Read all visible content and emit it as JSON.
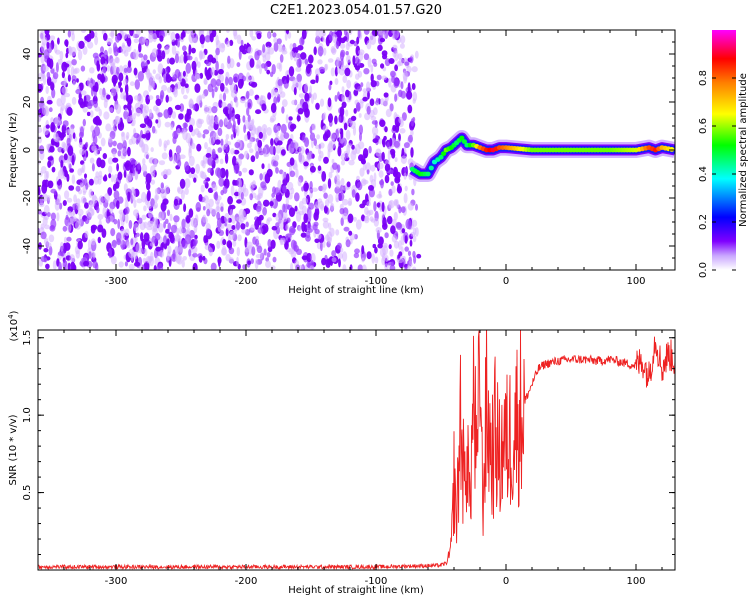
{
  "title": "C2E1.2023.054.01.57.G20",
  "chart_data": [
    {
      "type": "heatmap",
      "xlabel": "Height of straight line (km)",
      "ylabel": "Frequency (Hz)",
      "xlim": [
        -360,
        130
      ],
      "ylim": [
        -50,
        50
      ],
      "xticks": [
        -300,
        -200,
        -100,
        0,
        100
      ],
      "yticks": [
        -40,
        -20,
        0,
        20,
        40
      ],
      "colorbar": {
        "label": "Normalized spectral amplitude",
        "range": [
          0.0,
          1.0
        ],
        "ticks": [
          0.0,
          0.2,
          0.4,
          0.6,
          0.8
        ],
        "tick_labels": [
          "0.0",
          "0.2",
          "0.4",
          "0.6",
          "0.8"
        ],
        "colormap": [
          "#ffffff",
          "#7f00ff",
          "#0000ff",
          "#00ffff",
          "#00ff00",
          "#ffff00",
          "#ff7f00",
          "#ff0000",
          "#ff00ff"
        ]
      },
      "noise_region": {
        "x_range": [
          -360,
          -70
        ],
        "dominant_color": "#7f00ff"
      },
      "signal_track": {
        "x": [
          -72,
          -66,
          -60,
          -55,
          -50,
          -46,
          -42,
          -38,
          -34,
          -30,
          -25,
          -20,
          -15,
          -10,
          -5,
          0,
          20,
          50,
          80,
          100,
          110,
          115,
          120,
          130
        ],
        "y": [
          -8,
          -10,
          -10,
          -5,
          -3,
          0,
          1,
          3,
          5,
          2,
          2,
          1,
          0,
          0,
          1,
          1,
          0,
          0,
          0,
          0,
          1,
          0,
          1,
          0
        ],
        "amplitude": [
          0.45,
          0.5,
          0.45,
          0.4,
          0.45,
          0.55,
          0.5,
          0.45,
          0.5,
          0.45,
          0.55,
          0.75,
          0.85,
          0.9,
          0.8,
          0.75,
          0.55,
          0.55,
          0.55,
          0.6,
          0.8,
          0.85,
          0.7,
          0.6
        ]
      }
    },
    {
      "type": "line",
      "xlabel": "Height of straight line (km)",
      "ylabel": "SNR (10 * v/v)",
      "ylabel_scale": "(x10",
      "ylabel_scale_exp": "4",
      "ylabel_scale_close": ")",
      "xlim": [
        -360,
        130
      ],
      "ylim": [
        0.0,
        1.55
      ],
      "xticks": [
        -300,
        -200,
        -100,
        0,
        100
      ],
      "yticks": [
        0.5,
        1.0,
        1.5
      ],
      "ytick_labels": [
        "0.5",
        "1.0",
        "1.5"
      ],
      "series": [
        {
          "color": "#ee2222",
          "x": [
            -360,
            -300,
            -200,
            -100,
            -50,
            -45,
            -42,
            -40,
            -38,
            -35,
            -32,
            -30,
            -28,
            -25,
            -22,
            -20,
            -18,
            -15,
            -12,
            -10,
            -8,
            -5,
            -2,
            0,
            5,
            10,
            15,
            20,
            25,
            30,
            40,
            50,
            60,
            70,
            80,
            90,
            100,
            105,
            110,
            115,
            120,
            125,
            130
          ],
          "y": [
            0.02,
            0.02,
            0.02,
            0.02,
            0.03,
            0.05,
            0.15,
            0.6,
            0.3,
            1.0,
            0.5,
            0.9,
            0.4,
            1.1,
            0.6,
            1.5,
            0.4,
            1.05,
            0.8,
            0.75,
            0.9,
            0.7,
            0.85,
            0.8,
            0.9,
            1.0,
            1.1,
            1.2,
            1.3,
            1.33,
            1.35,
            1.36,
            1.36,
            1.35,
            1.36,
            1.34,
            1.32,
            1.35,
            1.25,
            1.5,
            1.3,
            1.4,
            1.35
          ]
        }
      ]
    }
  ]
}
